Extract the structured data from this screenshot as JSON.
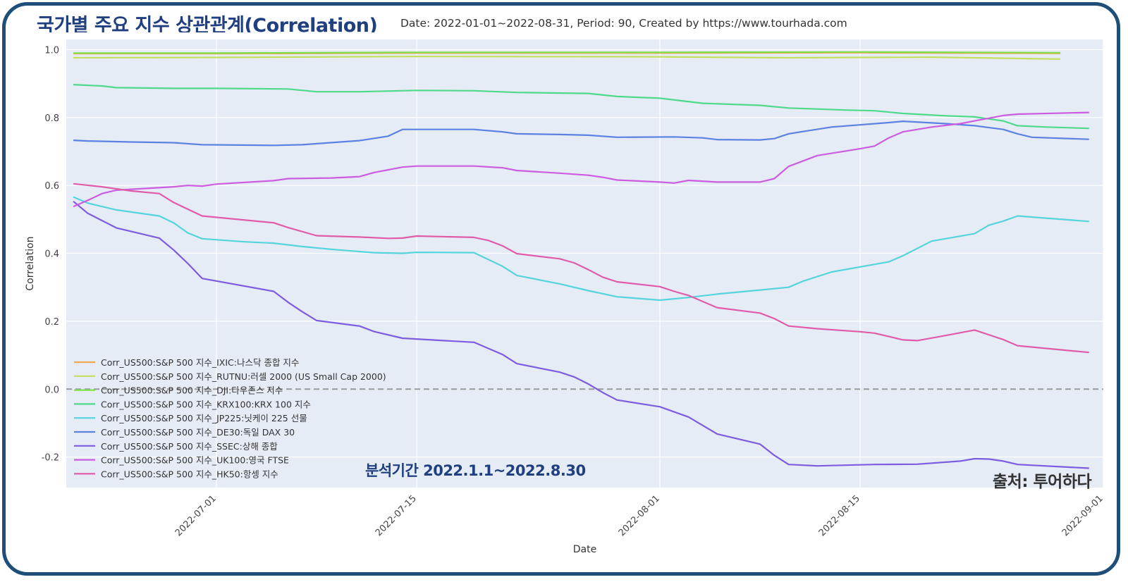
{
  "header": {
    "title": "국가별 주요 지수  상관관계(Correlation)",
    "subtitle": "Date: 2022-01-01~2022-08-31, Period: 90, Created by https://www.tourhada.com"
  },
  "annotations": {
    "period": "분석기간 2022.1.1~2022.8.30",
    "source": "출처: 투어하다"
  },
  "chart_data": {
    "type": "line",
    "title": "국가별 주요 지수  상관관계(Correlation)",
    "xlabel": "Date",
    "ylabel": "Correlation",
    "xlim": [
      -10.5,
      62
    ],
    "ylim": [
      -0.29,
      1.03
    ],
    "x_ticks": [
      {
        "label": "2022-07-01",
        "x": 0
      },
      {
        "label": "2022-07-15",
        "x": 14
      },
      {
        "label": "2022-08-01",
        "x": 31
      },
      {
        "label": "2022-08-15",
        "x": 45
      },
      {
        "label": "2022-09-01",
        "x": 62
      }
    ],
    "y_ticks": [
      {
        "label": "1.0",
        "v": 1.0
      },
      {
        "label": "0.8",
        "v": 0.8
      },
      {
        "label": "0.6",
        "v": 0.6
      },
      {
        "label": "0.4",
        "v": 0.4
      },
      {
        "label": "0.2",
        "v": 0.2
      },
      {
        "label": "0.0",
        "v": 0.0
      },
      {
        "label": "-0.2",
        "v": -0.2
      }
    ],
    "zero_line": 0.0,
    "legend_position": "bottom-left",
    "series": [
      {
        "name": "Corr_US500:S&P 500 지수_IXIC:나스닥 종합 지수",
        "color": "#f0a950",
        "points": [
          [
            -10,
            0.988
          ],
          [
            0,
            0.988
          ],
          [
            14,
            0.99
          ],
          [
            31,
            0.99
          ],
          [
            45,
            0.991
          ],
          [
            59,
            0.989
          ]
        ]
      },
      {
        "name": "Corr_US500:S&P 500 지수_RUTNU:러셀 2000 (US Small Cap 2000)",
        "color": "#c5e060",
        "points": [
          [
            -10,
            0.976
          ],
          [
            0,
            0.977
          ],
          [
            14,
            0.98
          ],
          [
            31,
            0.979
          ],
          [
            40,
            0.976
          ],
          [
            45,
            0.977
          ],
          [
            50,
            0.978
          ],
          [
            59,
            0.972
          ]
        ]
      },
      {
        "name": "Corr_US500:S&P 500 지수_DJI:다우존스 지수",
        "color": "#7de04b",
        "points": [
          [
            -10,
            0.99
          ],
          [
            0,
            0.99
          ],
          [
            14,
            0.992
          ],
          [
            31,
            0.992
          ],
          [
            45,
            0.993
          ],
          [
            59,
            0.991
          ]
        ]
      },
      {
        "name": "Corr_US500:S&P 500 지수_KRX100:KRX 100 지수",
        "color": "#4fd98a",
        "points": [
          [
            -10,
            0.897
          ],
          [
            -8,
            0.893
          ],
          [
            -7,
            0.888
          ],
          [
            -3,
            0.886
          ],
          [
            0,
            0.886
          ],
          [
            5,
            0.884
          ],
          [
            7,
            0.876
          ],
          [
            10,
            0.876
          ],
          [
            14,
            0.88
          ],
          [
            18,
            0.879
          ],
          [
            21,
            0.874
          ],
          [
            26,
            0.871
          ],
          [
            28,
            0.862
          ],
          [
            31,
            0.857
          ],
          [
            34,
            0.842
          ],
          [
            38,
            0.836
          ],
          [
            40,
            0.828
          ],
          [
            44,
            0.822
          ],
          [
            46,
            0.82
          ],
          [
            48,
            0.812
          ],
          [
            51,
            0.805
          ],
          [
            53,
            0.802
          ],
          [
            55,
            0.79
          ],
          [
            56,
            0.776
          ],
          [
            58,
            0.772
          ],
          [
            61,
            0.768
          ]
        ]
      },
      {
        "name": "Corr_US500:S&P 500 지수_JP225:닛케이 225 선물",
        "color": "#55d4dc",
        "points": [
          [
            -10,
            0.566
          ],
          [
            -9,
            0.548
          ],
          [
            -7,
            0.528
          ],
          [
            -4,
            0.51
          ],
          [
            -3,
            0.49
          ],
          [
            -2,
            0.46
          ],
          [
            -1,
            0.443
          ],
          [
            2,
            0.434
          ],
          [
            4,
            0.43
          ],
          [
            6,
            0.42
          ],
          [
            8,
            0.412
          ],
          [
            11,
            0.402
          ],
          [
            13,
            0.4
          ],
          [
            14,
            0.403
          ],
          [
            18,
            0.402
          ],
          [
            20,
            0.362
          ],
          [
            21,
            0.335
          ],
          [
            24,
            0.31
          ],
          [
            26,
            0.29
          ],
          [
            28,
            0.272
          ],
          [
            31,
            0.262
          ],
          [
            33,
            0.27
          ],
          [
            35,
            0.28
          ],
          [
            38,
            0.292
          ],
          [
            40,
            0.3
          ],
          [
            41,
            0.318
          ],
          [
            43,
            0.345
          ],
          [
            47,
            0.375
          ],
          [
            48,
            0.393
          ],
          [
            50,
            0.436
          ],
          [
            53,
            0.458
          ],
          [
            54,
            0.483
          ],
          [
            55,
            0.495
          ],
          [
            56,
            0.51
          ],
          [
            61,
            0.494
          ]
        ]
      },
      {
        "name": "Corr_US500:S&P 500 지수_DE30:독일 DAX 30",
        "color": "#5b82e0",
        "points": [
          [
            -10,
            0.733
          ],
          [
            -9,
            0.731
          ],
          [
            -6,
            0.728
          ],
          [
            -3,
            0.726
          ],
          [
            -1,
            0.72
          ],
          [
            4,
            0.718
          ],
          [
            6,
            0.72
          ],
          [
            10,
            0.732
          ],
          [
            12,
            0.745
          ],
          [
            13,
            0.765
          ],
          [
            18,
            0.765
          ],
          [
            20,
            0.758
          ],
          [
            21,
            0.752
          ],
          [
            24,
            0.75
          ],
          [
            26,
            0.748
          ],
          [
            28,
            0.742
          ],
          [
            32,
            0.743
          ],
          [
            34,
            0.74
          ],
          [
            35,
            0.735
          ],
          [
            38,
            0.734
          ],
          [
            39,
            0.738
          ],
          [
            40,
            0.752
          ],
          [
            43,
            0.772
          ],
          [
            47,
            0.785
          ],
          [
            48,
            0.789
          ],
          [
            51,
            0.782
          ],
          [
            53,
            0.776
          ],
          [
            55,
            0.765
          ],
          [
            56,
            0.752
          ],
          [
            57,
            0.742
          ],
          [
            61,
            0.736
          ]
        ]
      },
      {
        "name": "Corr_US500:S&P 500 지수_SSEC:상해 종합",
        "color": "#7d5ce0",
        "points": [
          [
            -10,
            0.553
          ],
          [
            -9,
            0.518
          ],
          [
            -7,
            0.475
          ],
          [
            -4,
            0.445
          ],
          [
            -3,
            0.41
          ],
          [
            -2,
            0.37
          ],
          [
            -1,
            0.326
          ],
          [
            4,
            0.288
          ],
          [
            5,
            0.256
          ],
          [
            6,
            0.228
          ],
          [
            7,
            0.202
          ],
          [
            10,
            0.186
          ],
          [
            11,
            0.17
          ],
          [
            13,
            0.15
          ],
          [
            18,
            0.138
          ],
          [
            20,
            0.102
          ],
          [
            21,
            0.075
          ],
          [
            24,
            0.05
          ],
          [
            25,
            0.036
          ],
          [
            26,
            0.015
          ],
          [
            27,
            -0.01
          ],
          [
            28,
            -0.032
          ],
          [
            31,
            -0.052
          ],
          [
            33,
            -0.082
          ],
          [
            35,
            -0.132
          ],
          [
            38,
            -0.162
          ],
          [
            39,
            -0.195
          ],
          [
            40,
            -0.222
          ],
          [
            42,
            -0.226
          ],
          [
            44,
            -0.224
          ],
          [
            46,
            -0.222
          ],
          [
            49,
            -0.221
          ],
          [
            52,
            -0.212
          ],
          [
            53,
            -0.205
          ],
          [
            54,
            -0.206
          ],
          [
            55,
            -0.212
          ],
          [
            56,
            -0.222
          ],
          [
            61,
            -0.233
          ]
        ]
      },
      {
        "name": "Corr_US500:S&P 500 지수_UK100:영국 FTSE",
        "color": "#cc5ce0",
        "points": [
          [
            -10,
            0.538
          ],
          [
            -9,
            0.556
          ],
          [
            -8,
            0.576
          ],
          [
            -7,
            0.586
          ],
          [
            -3,
            0.596
          ],
          [
            -2,
            0.6
          ],
          [
            -1,
            0.598
          ],
          [
            0,
            0.604
          ],
          [
            4,
            0.614
          ],
          [
            5,
            0.62
          ],
          [
            8,
            0.622
          ],
          [
            10,
            0.626
          ],
          [
            11,
            0.638
          ],
          [
            13,
            0.654
          ],
          [
            14,
            0.657
          ],
          [
            18,
            0.657
          ],
          [
            20,
            0.652
          ],
          [
            21,
            0.644
          ],
          [
            24,
            0.636
          ],
          [
            26,
            0.63
          ],
          [
            27,
            0.624
          ],
          [
            28,
            0.616
          ],
          [
            31,
            0.61
          ],
          [
            32,
            0.607
          ],
          [
            33,
            0.615
          ],
          [
            35,
            0.61
          ],
          [
            38,
            0.61
          ],
          [
            39,
            0.62
          ],
          [
            40,
            0.656
          ],
          [
            42,
            0.688
          ],
          [
            45,
            0.708
          ],
          [
            46,
            0.716
          ],
          [
            47,
            0.74
          ],
          [
            48,
            0.758
          ],
          [
            50,
            0.772
          ],
          [
            52,
            0.782
          ],
          [
            53,
            0.79
          ],
          [
            55,
            0.806
          ],
          [
            56,
            0.81
          ],
          [
            61,
            0.815
          ]
        ]
      },
      {
        "name": "Corr_US500:S&P 500 지수_HK50:항셍 지수",
        "color": "#e05ca8",
        "points": [
          [
            -10,
            0.605
          ],
          [
            -8,
            0.596
          ],
          [
            -6,
            0.584
          ],
          [
            -4,
            0.576
          ],
          [
            -3,
            0.55
          ],
          [
            -1,
            0.51
          ],
          [
            4,
            0.49
          ],
          [
            5,
            0.476
          ],
          [
            7,
            0.452
          ],
          [
            10,
            0.448
          ],
          [
            12,
            0.444
          ],
          [
            13,
            0.445
          ],
          [
            14,
            0.451
          ],
          [
            18,
            0.447
          ],
          [
            19,
            0.438
          ],
          [
            20,
            0.422
          ],
          [
            21,
            0.399
          ],
          [
            24,
            0.384
          ],
          [
            25,
            0.372
          ],
          [
            26,
            0.352
          ],
          [
            27,
            0.33
          ],
          [
            28,
            0.316
          ],
          [
            31,
            0.302
          ],
          [
            32,
            0.288
          ],
          [
            33,
            0.276
          ],
          [
            35,
            0.24
          ],
          [
            38,
            0.224
          ],
          [
            39,
            0.208
          ],
          [
            40,
            0.186
          ],
          [
            42,
            0.178
          ],
          [
            45,
            0.169
          ],
          [
            46,
            0.165
          ],
          [
            48,
            0.145
          ],
          [
            49,
            0.143
          ],
          [
            51,
            0.158
          ],
          [
            53,
            0.174
          ],
          [
            55,
            0.146
          ],
          [
            56,
            0.128
          ],
          [
            61,
            0.108
          ]
        ]
      }
    ]
  }
}
